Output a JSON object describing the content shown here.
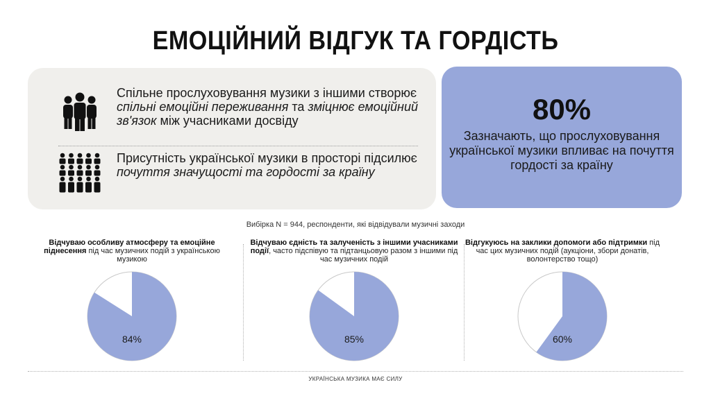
{
  "title": "ЕМОЦІЙНИЙ ВІДГУК ТА ГОРДІСТЬ",
  "left_panel": {
    "rows": [
      {
        "icon": "group-people-icon",
        "parts": [
          {
            "text": "Спільне прослуховування музики з іншими створює ",
            "italic": false
          },
          {
            "text": "спільні емоційні переживання",
            "italic": true
          },
          {
            "text": " та ",
            "italic": false
          },
          {
            "text": "зміцнює емоційний зв'язок",
            "italic": true
          },
          {
            "text": " між учасниками досвіду",
            "italic": false
          }
        ]
      },
      {
        "icon": "crowd-icon",
        "parts": [
          {
            "text": "Присутність української музики в просторі підсилює ",
            "italic": false
          },
          {
            "text": "почуття значущості та гордості за країну",
            "italic": true
          }
        ]
      }
    ]
  },
  "right_panel": {
    "percent": "80%",
    "text": "Зазначають, що прослуховування української музики впливає на почуття гордості за країну"
  },
  "sample_note": "Вибірка N = 944, респонденти, які відвідували музичні заходи",
  "pies": [
    {
      "bold": "Відчуваю особливу атмосферу та емоційне піднесення",
      "rest": " під час музичних подій з українською музикою",
      "label": "84%",
      "value": 84
    },
    {
      "bold": "Відчуваю єдність та залученість з іншими учасниками події",
      "rest": ", часто підспівую та підтанцьовую разом з іншими під час музичних подій",
      "label": "85%",
      "value": 85
    },
    {
      "bold": "Відгукуюсь на заклики допомоги або підтримки",
      "rest": " під час цих музичних подій (аукціони, збори донатів, волонтерство тощо)",
      "label": "60%",
      "value": 60
    }
  ],
  "colors": {
    "accent": "#97a7da",
    "panel_bg": "#f0efec",
    "pie_fill": "#97a7da",
    "pie_empty": "#ffffff",
    "pie_stroke": "#c8c8c8"
  },
  "footer": "УКРАЇНСЬКА МУЗИКА МАЄ СИЛУ"
}
